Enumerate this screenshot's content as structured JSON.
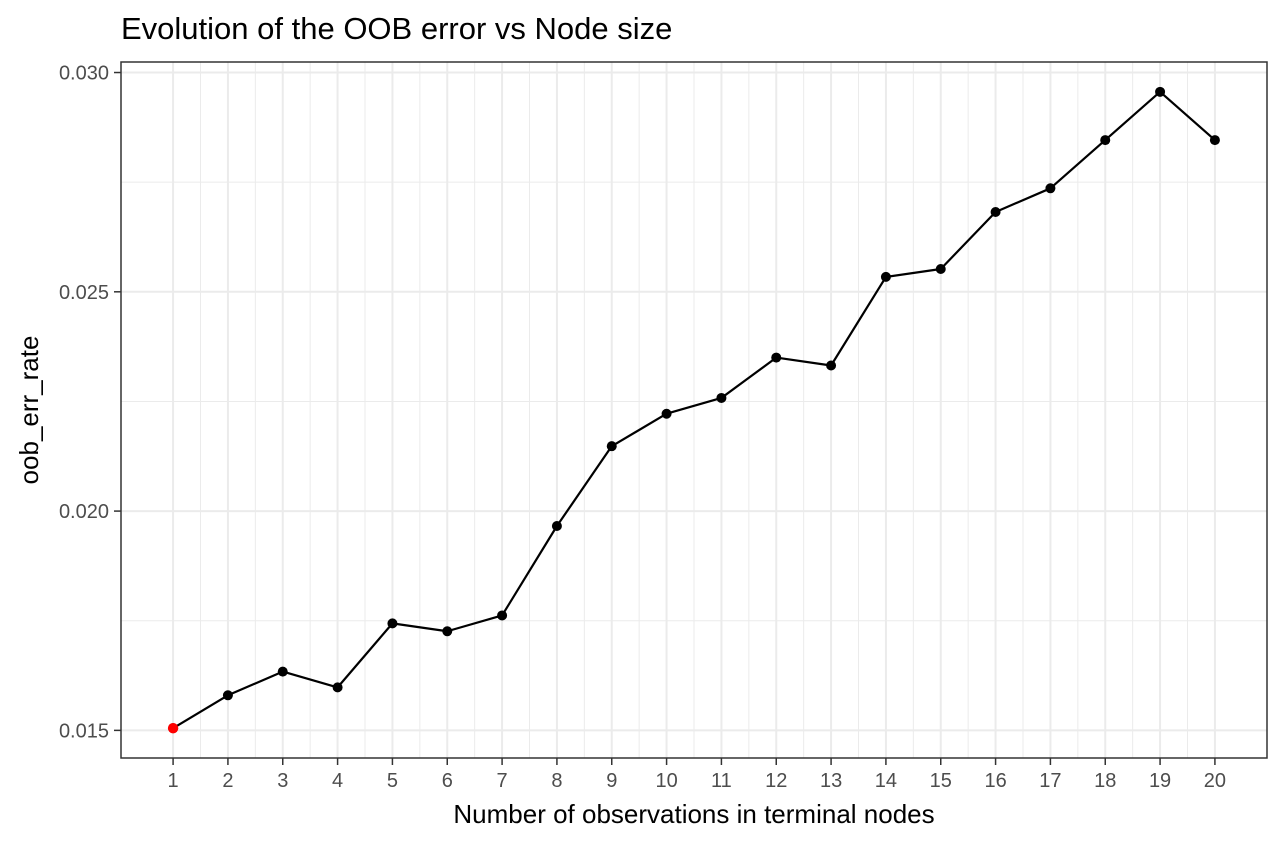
{
  "chart_data": {
    "type": "line",
    "title": "Evolution of the OOB error vs Node size",
    "xlabel": "Number of observations in terminal nodes",
    "ylabel": "oob_err_rate",
    "x": [
      1,
      2,
      3,
      4,
      5,
      6,
      7,
      8,
      9,
      10,
      11,
      12,
      13,
      14,
      15,
      16,
      17,
      18,
      19,
      20
    ],
    "series": [
      {
        "values": [
          0.01505,
          0.0158,
          0.01634,
          0.01598,
          0.01744,
          0.01726,
          0.01762,
          0.01966,
          0.02148,
          0.02222,
          0.02258,
          0.0235,
          0.02332,
          0.02534,
          0.02552,
          0.02682,
          0.02736,
          0.02846,
          0.02956,
          0.02846
        ]
      }
    ],
    "highlight": {
      "x": 1,
      "value": 0.01505,
      "color": "#ff0000"
    },
    "xlim": [
      0.05,
      20.95
    ],
    "ylim": [
      0.01437,
      0.03024
    ],
    "x_ticks": [
      1,
      2,
      3,
      4,
      5,
      6,
      7,
      8,
      9,
      10,
      11,
      12,
      13,
      14,
      15,
      16,
      17,
      18,
      19,
      20
    ],
    "x_tick_labels": [
      "1",
      "2",
      "3",
      "4",
      "5",
      "6",
      "7",
      "8",
      "9",
      "10",
      "11",
      "12",
      "13",
      "14",
      "15",
      "16",
      "17",
      "18",
      "19",
      "20"
    ],
    "y_ticks": [
      0.015,
      0.02,
      0.025,
      0.03
    ],
    "y_tick_labels": [
      "0.015",
      "0.020",
      "0.025",
      "0.030"
    ],
    "grid": true,
    "legend": "none",
    "colors": {
      "line": "#000000",
      "point": "#000000",
      "highlight": "#ff0000",
      "grid": "#ebebeb",
      "panel_border": "#333333",
      "tick_label": "#4d4d4d"
    }
  }
}
